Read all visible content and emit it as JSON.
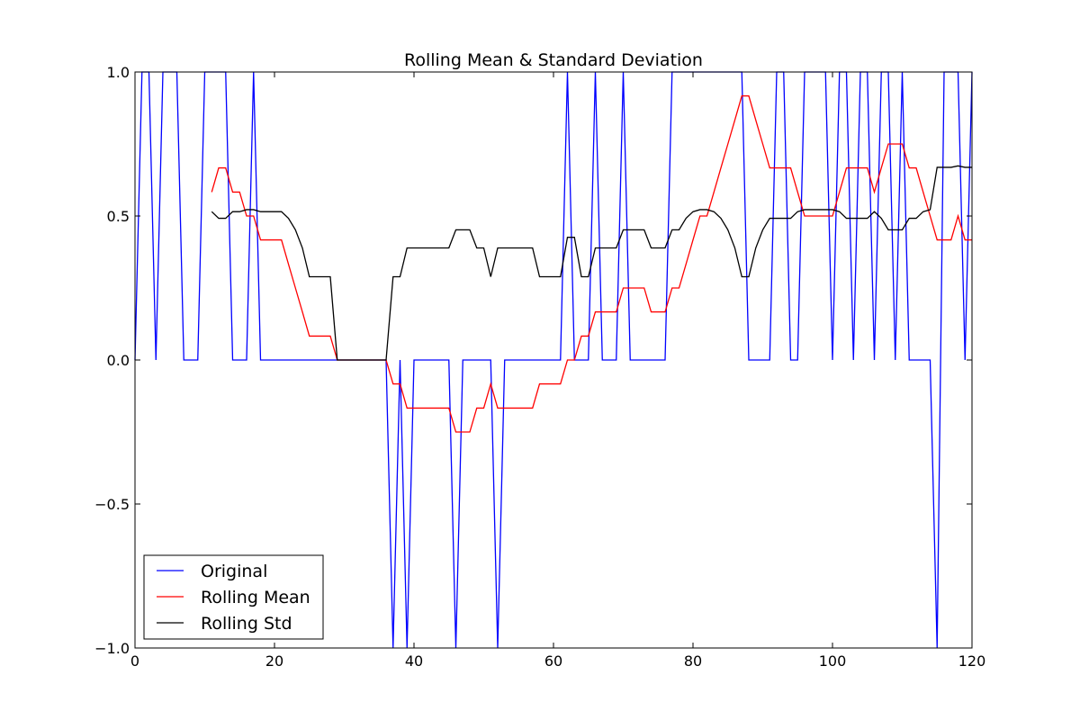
{
  "chart_data": {
    "type": "line",
    "title": "Rolling Mean & Standard Deviation",
    "xlabel": "",
    "ylabel": "",
    "xlim": [
      0,
      120
    ],
    "ylim": [
      -1.0,
      1.0
    ],
    "x_ticks": [
      0,
      20,
      40,
      60,
      80,
      100,
      120
    ],
    "x_tick_labels": [
      "0",
      "20",
      "40",
      "60",
      "80",
      "100",
      "120"
    ],
    "y_ticks": [
      -1.0,
      -0.5,
      0.0,
      0.5,
      1.0
    ],
    "y_tick_labels": [
      "−1.0",
      "−0.5",
      "0.0",
      "0.5",
      "1.0"
    ],
    "grid": false,
    "legend_position": "lower-left",
    "series": [
      {
        "name": "Original",
        "color": "#0000ff",
        "x": [
          0,
          1,
          2,
          3,
          4,
          5,
          6,
          7,
          8,
          9,
          10,
          11,
          12,
          13,
          14,
          15,
          16,
          17,
          18,
          19,
          20,
          21,
          22,
          23,
          24,
          25,
          26,
          27,
          28,
          29,
          30,
          31,
          32,
          33,
          34,
          35,
          36,
          37,
          38,
          39,
          40,
          41,
          42,
          43,
          44,
          45,
          46,
          47,
          48,
          49,
          50,
          51,
          52,
          53,
          54,
          55,
          56,
          57,
          58,
          59,
          60,
          61,
          62,
          63,
          64,
          65,
          66,
          67,
          68,
          69,
          70,
          71,
          72,
          73,
          74,
          75,
          76,
          77,
          78,
          79,
          80,
          81,
          82,
          83,
          84,
          85,
          86,
          87,
          88,
          89,
          90,
          91,
          92,
          93,
          94,
          95,
          96,
          97,
          98,
          99,
          100,
          101,
          102,
          103,
          104,
          105,
          106,
          107,
          108,
          109,
          110,
          111,
          112,
          113,
          114,
          115,
          116,
          117,
          118,
          119,
          120
        ],
        "y": [
          0,
          1,
          1,
          0,
          1,
          1,
          1,
          0,
          0,
          0,
          1,
          1,
          1,
          1,
          0,
          0,
          0,
          1,
          0,
          0,
          0,
          0,
          0,
          0,
          0,
          0,
          0,
          0,
          0,
          0,
          0,
          0,
          0,
          0,
          0,
          0,
          0,
          -1,
          0,
          -1,
          0,
          0,
          0,
          0,
          0,
          0,
          -1,
          0,
          0,
          0,
          0,
          0,
          -1,
          0,
          0,
          0,
          0,
          0,
          0,
          0,
          0,
          0,
          1,
          0,
          0,
          0,
          1,
          0,
          0,
          0,
          1,
          0,
          0,
          0,
          0,
          0,
          0,
          1,
          1,
          1,
          1,
          1,
          1,
          1,
          1,
          1,
          1,
          1,
          0,
          0,
          0,
          0,
          1,
          1,
          0,
          0,
          1,
          1,
          1,
          1,
          0,
          1,
          1,
          0,
          1,
          1,
          0,
          1,
          1,
          0,
          1,
          0,
          0,
          0,
          0,
          -1,
          1,
          1,
          1,
          0,
          1
        ]
      },
      {
        "name": "Rolling Mean",
        "color": "#ff0000",
        "x": [
          11,
          12,
          13,
          14,
          15,
          16,
          17,
          18,
          19,
          20,
          21,
          22,
          23,
          24,
          25,
          26,
          27,
          28,
          29,
          30,
          31,
          32,
          33,
          34,
          35,
          36,
          37,
          38,
          39,
          40,
          41,
          42,
          43,
          44,
          45,
          46,
          47,
          48,
          49,
          50,
          51,
          52,
          53,
          54,
          55,
          56,
          57,
          58,
          59,
          60,
          61,
          62,
          63,
          64,
          65,
          66,
          67,
          68,
          69,
          70,
          71,
          72,
          73,
          74,
          75,
          76,
          77,
          78,
          79,
          80,
          81,
          82,
          83,
          84,
          85,
          86,
          87,
          88,
          89,
          90,
          91,
          92,
          93,
          94,
          95,
          96,
          97,
          98,
          99,
          100,
          101,
          102,
          103,
          104,
          105,
          106,
          107,
          108,
          109,
          110,
          111,
          112,
          113,
          114,
          115,
          116,
          117,
          118,
          119,
          120
        ],
        "y": [
          0.583,
          0.667,
          0.667,
          0.583,
          0.583,
          0.5,
          0.5,
          0.417,
          0.417,
          0.417,
          0.417,
          0.333,
          0.25,
          0.167,
          0.083,
          0.083,
          0.083,
          0.083,
          0,
          0,
          0,
          0,
          0,
          0,
          0,
          0,
          -0.083,
          -0.083,
          -0.167,
          -0.167,
          -0.167,
          -0.167,
          -0.167,
          -0.167,
          -0.167,
          -0.25,
          -0.25,
          -0.25,
          -0.167,
          -0.167,
          -0.083,
          -0.167,
          -0.167,
          -0.167,
          -0.167,
          -0.167,
          -0.167,
          -0.083,
          -0.083,
          -0.083,
          -0.083,
          0,
          0,
          0.083,
          0.083,
          0.167,
          0.167,
          0.167,
          0.167,
          0.25,
          0.25,
          0.25,
          0.25,
          0.167,
          0.167,
          0.167,
          0.25,
          0.25,
          0.333,
          0.417,
          0.5,
          0.5,
          0.583,
          0.667,
          0.75,
          0.833,
          0.917,
          0.917,
          0.833,
          0.75,
          0.667,
          0.667,
          0.667,
          0.667,
          0.583,
          0.5,
          0.5,
          0.5,
          0.5,
          0.5,
          0.583,
          0.667,
          0.667,
          0.667,
          0.667,
          0.583,
          0.667,
          0.75,
          0.75,
          0.75,
          0.667,
          0.667,
          0.583,
          0.5,
          0.417,
          0.417,
          0.417,
          0.5,
          0.417,
          0.417
        ]
      },
      {
        "name": "Rolling Std",
        "color": "#000000",
        "x": [
          11,
          12,
          13,
          14,
          15,
          16,
          17,
          18,
          19,
          20,
          21,
          22,
          23,
          24,
          25,
          26,
          27,
          28,
          29,
          30,
          31,
          32,
          33,
          34,
          35,
          36,
          37,
          38,
          39,
          40,
          41,
          42,
          43,
          44,
          45,
          46,
          47,
          48,
          49,
          50,
          51,
          52,
          53,
          54,
          55,
          56,
          57,
          58,
          59,
          60,
          61,
          62,
          63,
          64,
          65,
          66,
          67,
          68,
          69,
          70,
          71,
          72,
          73,
          74,
          75,
          76,
          77,
          78,
          79,
          80,
          81,
          82,
          83,
          84,
          85,
          86,
          87,
          88,
          89,
          90,
          91,
          92,
          93,
          94,
          95,
          96,
          97,
          98,
          99,
          100,
          101,
          102,
          103,
          104,
          105,
          106,
          107,
          108,
          109,
          110,
          111,
          112,
          113,
          114,
          115,
          116,
          117,
          118,
          119,
          120
        ],
        "y": [
          0.515,
          0.492,
          0.492,
          0.515,
          0.515,
          0.522,
          0.522,
          0.515,
          0.515,
          0.515,
          0.515,
          0.492,
          0.452,
          0.389,
          0.289,
          0.289,
          0.289,
          0.289,
          0,
          0,
          0,
          0,
          0,
          0,
          0,
          0,
          0.289,
          0.289,
          0.389,
          0.389,
          0.389,
          0.389,
          0.389,
          0.389,
          0.389,
          0.452,
          0.452,
          0.452,
          0.389,
          0.389,
          0.289,
          0.389,
          0.389,
          0.389,
          0.389,
          0.389,
          0.389,
          0.289,
          0.289,
          0.289,
          0.289,
          0.426,
          0.426,
          0.289,
          0.289,
          0.389,
          0.389,
          0.389,
          0.389,
          0.452,
          0.452,
          0.452,
          0.452,
          0.389,
          0.389,
          0.389,
          0.452,
          0.452,
          0.492,
          0.515,
          0.522,
          0.522,
          0.515,
          0.492,
          0.452,
          0.389,
          0.289,
          0.289,
          0.389,
          0.452,
          0.492,
          0.492,
          0.492,
          0.492,
          0.515,
          0.522,
          0.522,
          0.522,
          0.522,
          0.522,
          0.515,
          0.492,
          0.492,
          0.492,
          0.492,
          0.515,
          0.492,
          0.452,
          0.452,
          0.452,
          0.492,
          0.492,
          0.515,
          0.522,
          0.669,
          0.669,
          0.669,
          0.674,
          0.669,
          0.669
        ]
      }
    ]
  }
}
